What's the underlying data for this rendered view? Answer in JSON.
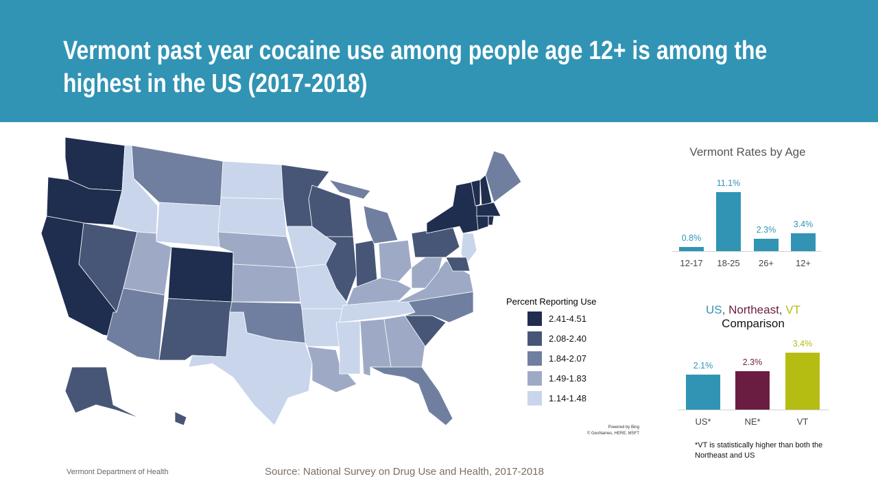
{
  "title": "Vermont past year cocaine use among people age 12+ is among the\nhighest in the US (2017-2018)",
  "legend": {
    "title": "Percent Reporting Use",
    "classes": [
      {
        "label": "2.41-4.51",
        "color": "#1f2d4f"
      },
      {
        "label": "2.08-2.40",
        "color": "#475677"
      },
      {
        "label": "1.84-2.07",
        "color": "#707f9f"
      },
      {
        "label": "1.49-1.83",
        "color": "#9eaac5"
      },
      {
        "label": "1.14-1.48",
        "color": "#c9d5eb"
      }
    ]
  },
  "map_credit": {
    "line1": "Powered by Bing",
    "line2": "© GeoNames, HERE, MSFT"
  },
  "state_class": {
    "WA": 0,
    "OR": 0,
    "CA": 0,
    "CO": 0,
    "NY": 0,
    "VT": 0,
    "NH": 0,
    "MA": 0,
    "CT": 0,
    "RI": 0,
    "DE": 1,
    "NV": 1,
    "NM": 1,
    "MN": 1,
    "WI": 1,
    "IL": 1,
    "IN": 1,
    "PA": 1,
    "AK": 1,
    "HI": 1,
    "SC": 1,
    "MT": 2,
    "AZ": 2,
    "ME": 2,
    "MI": 2,
    "OK": 2,
    "NC": 2,
    "FL": 2,
    "UT": 3,
    "NE": 3,
    "KS": 3,
    "OH": 3,
    "KY": 3,
    "WV": 3,
    "VA": 3,
    "LA": 3,
    "AL": 3,
    "GA": 3,
    "ID": 4,
    "WY": 4,
    "ND": 4,
    "SD": 4,
    "IA": 4,
    "MO": 4,
    "AR": 4,
    "TX": 4,
    "MS": 4,
    "TN": 4,
    "NJ": 4
  },
  "chart_data": [
    {
      "type": "bar",
      "title": "Vermont Rates by Age",
      "categories": [
        "12-17",
        "18-25",
        "26+",
        "12+"
      ],
      "values": [
        0.8,
        11.1,
        2.3,
        3.4
      ],
      "data_labels": [
        "0.8%",
        "11.1%",
        "2.3%",
        "3.4%"
      ],
      "color": "#3194b4",
      "ylim": [
        0,
        11.1
      ]
    },
    {
      "type": "bar",
      "title_parts": [
        {
          "text": "US",
          "color": "#3194b4"
        },
        {
          "text": ", ",
          "color": "#555555"
        },
        {
          "text": "Northeast",
          "color": "#6b1d41"
        },
        {
          "text": ", ",
          "color": "#555555"
        },
        {
          "text": "VT",
          "color": "#b5bd12"
        }
      ],
      "title_line2": "Comparison",
      "categories": [
        "US*",
        "NE*",
        "VT"
      ],
      "values": [
        2.1,
        2.3,
        3.4
      ],
      "data_labels": [
        "2.1%",
        "2.3%",
        "3.4%"
      ],
      "colors": [
        "#3194b4",
        "#6b1d41",
        "#b5bd12"
      ],
      "ylim": [
        0,
        3.4
      ]
    }
  ],
  "note": "*VT is statistically higher than both the Northeast and US",
  "footer": {
    "org": "Vermont Department of Health",
    "source": "Source: National Survey on Drug Use and Health, 2017-2018"
  }
}
